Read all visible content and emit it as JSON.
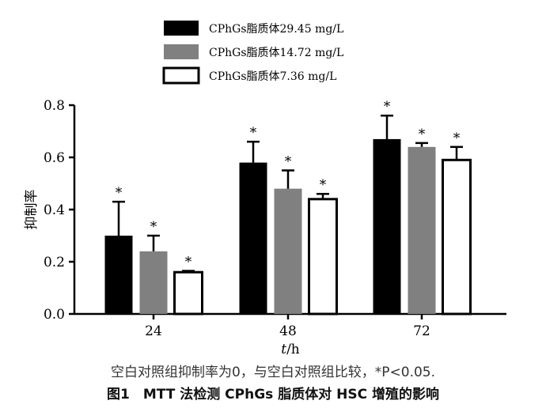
{
  "chart_data": {
    "type": "bar",
    "categories": [
      "24",
      "48",
      "72"
    ],
    "series": [
      {
        "name": "CPhGs脂质体29.45 mg/L",
        "color": "#000000",
        "fill": "#000000",
        "values": [
          0.3,
          0.58,
          0.67
        ],
        "errors": [
          0.13,
          0.08,
          0.09
        ]
      },
      {
        "name": "CPhGs脂质体14.72 mg/L",
        "color": "#808080",
        "fill": "#808080",
        "values": [
          0.24,
          0.48,
          0.64
        ],
        "errors": [
          0.06,
          0.07,
          0.015
        ]
      },
      {
        "name": "CPhGs脂质体7.36 mg/L",
        "color": "#000000",
        "fill": "#ffffff",
        "values": [
          0.16,
          0.44,
          0.59
        ],
        "errors": [
          0.005,
          0.02,
          0.05
        ]
      }
    ],
    "significance_marker": "*",
    "xlabel_italic": "t",
    "xlabel_unit": "/h",
    "ylabel": "抑制率",
    "ylim": [
      0,
      0.8
    ],
    "yticks": [
      "0.0",
      "0.2",
      "0.4",
      "0.6",
      "0.8"
    ],
    "legend_position": "top-left"
  },
  "caption": {
    "note": "空白对照组抑制率为0，与空白对照组比较，*P<0.05.",
    "title": "图1　MTT 法检测 CPhGs 脂质体对 HSC 增殖的影响"
  }
}
